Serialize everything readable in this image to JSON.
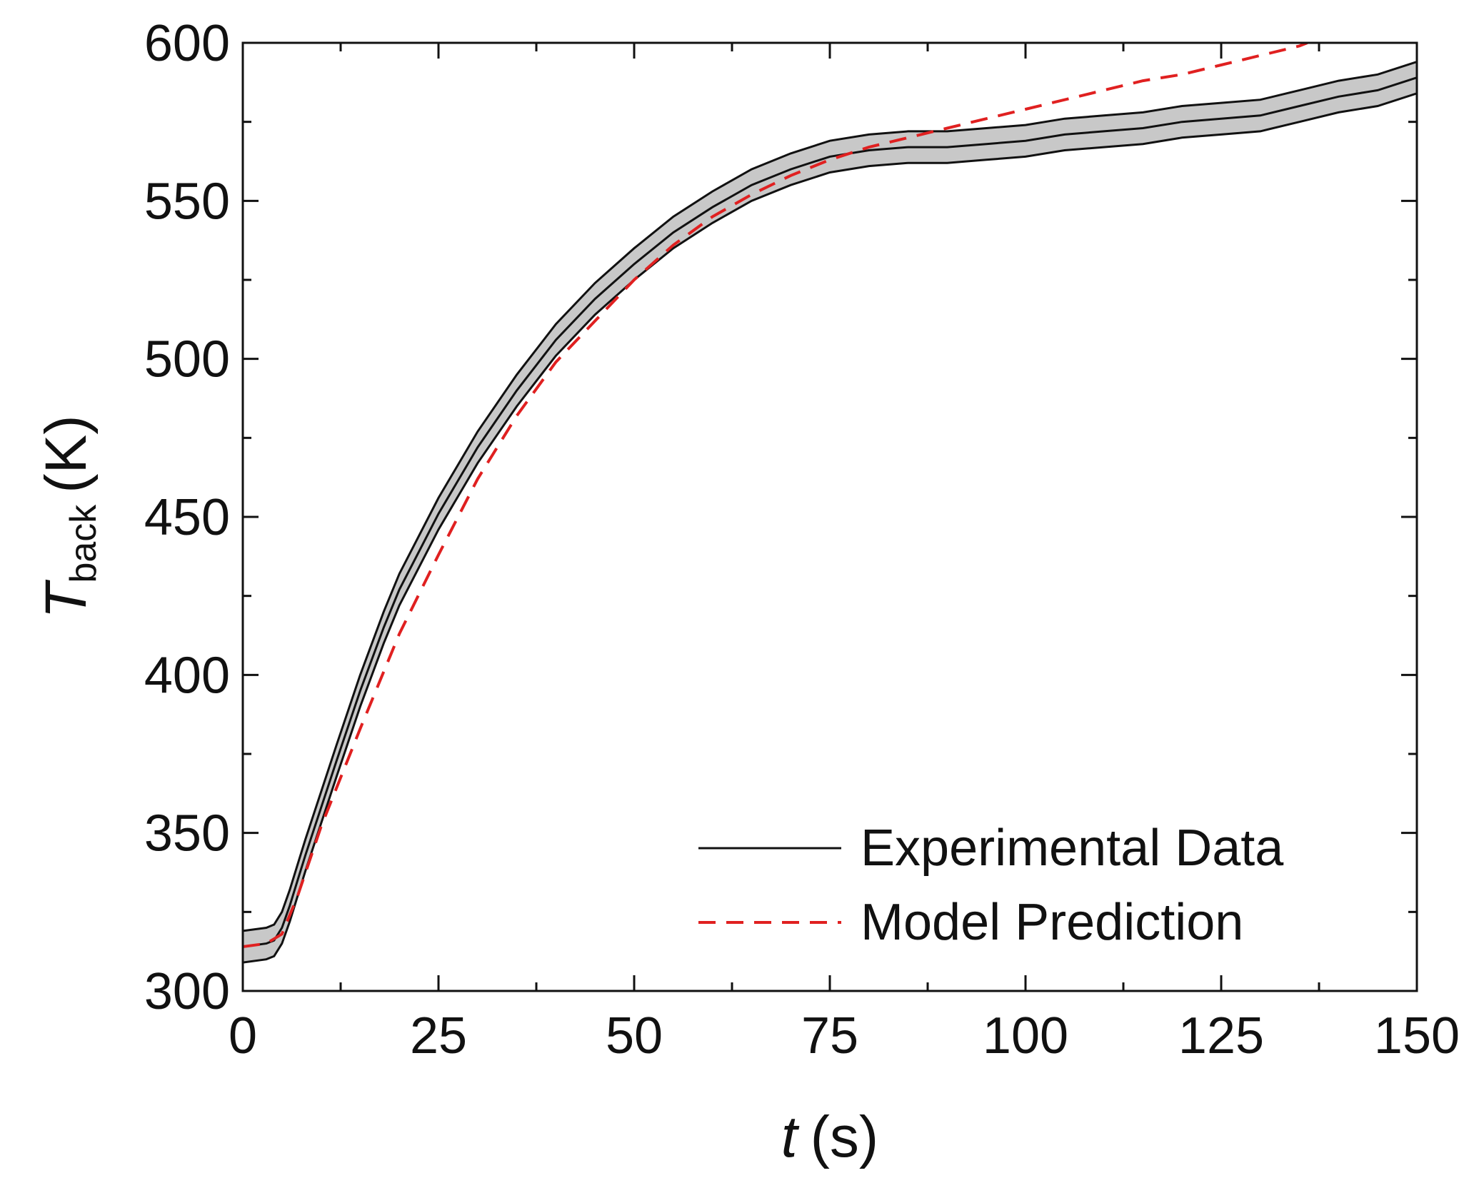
{
  "chart_data": {
    "type": "line",
    "x_label": {
      "variable": "t",
      "unit": "(s)"
    },
    "y_label": {
      "variable": "T",
      "subscript": "back",
      "unit": "(K)"
    },
    "xlim": [
      0,
      150
    ],
    "ylim": [
      300,
      600
    ],
    "x_ticks": [
      0,
      25,
      50,
      75,
      100,
      125,
      150
    ],
    "y_ticks": [
      300,
      350,
      400,
      450,
      500,
      550,
      600
    ],
    "legend_position": "bottom-right",
    "series": [
      {
        "name": "Experimental Data",
        "style": "solid",
        "color": "#111111",
        "band_color": "#c8c8c8",
        "band_halfwidth": 5,
        "x": [
          0,
          3,
          4,
          5,
          6,
          7,
          8,
          10,
          12,
          15,
          18,
          20,
          25,
          30,
          35,
          40,
          45,
          50,
          55,
          60,
          65,
          70,
          75,
          80,
          85,
          90,
          95,
          100,
          105,
          110,
          115,
          120,
          125,
          130,
          135,
          140,
          145,
          150
        ],
        "y": [
          314,
          315,
          316,
          320,
          327,
          335,
          343,
          358,
          373,
          395,
          415,
          427,
          451,
          472,
          490,
          506,
          519,
          530,
          540,
          548,
          555,
          560,
          564,
          566,
          567,
          567,
          568,
          569,
          571,
          572,
          573,
          575,
          576,
          577,
          580,
          583,
          585,
          589
        ]
      },
      {
        "name": "Model Prediction",
        "style": "dashed",
        "color": "#e02020",
        "x": [
          0,
          3,
          5,
          7,
          10,
          15,
          20,
          25,
          30,
          35,
          40,
          45,
          50,
          55,
          60,
          65,
          70,
          75,
          80,
          85,
          90,
          95,
          100,
          105,
          110,
          115,
          120,
          125,
          130,
          135,
          136
        ],
        "y": [
          314,
          315,
          318,
          330,
          352,
          383,
          413,
          438,
          462,
          482,
          499,
          512,
          525,
          536,
          545,
          552,
          558,
          563,
          567,
          570,
          573,
          576,
          579,
          582,
          585,
          588,
          590,
          593,
          596,
          599,
          600
        ]
      }
    ]
  }
}
